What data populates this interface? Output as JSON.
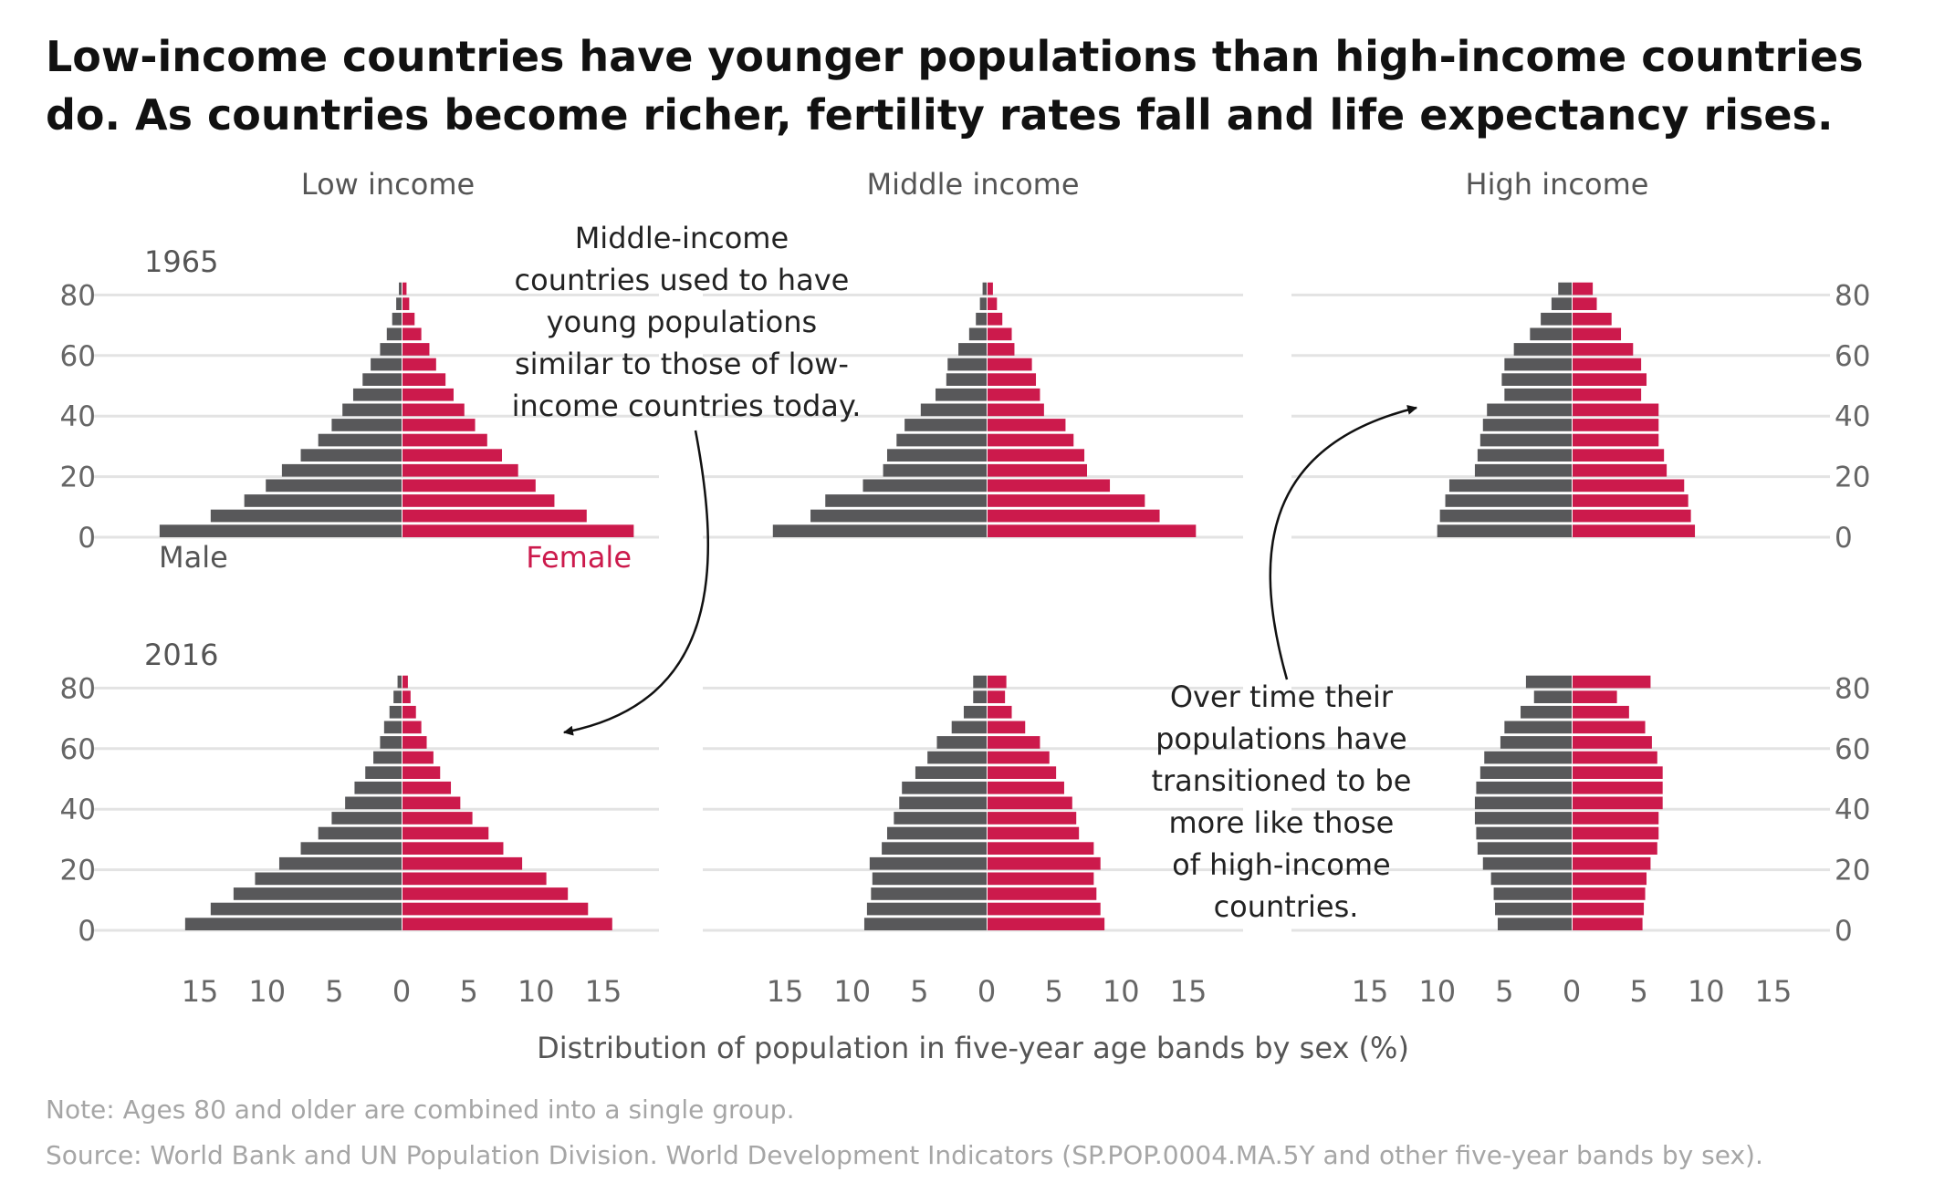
{
  "title": "Low-income countries have younger populations than high-income countries do. As countries become richer, fertility rates fall and life expectancy rises.",
  "note": "Note: Ages 80 and older are combined into a single group.",
  "source": "Source: World Bank and UN Population Division. World Development Indicators (SP.POP.0004.MA.5Y and other five-year bands by sex).",
  "colors": {
    "male": "#58585a",
    "female": "#cc1a4c",
    "grid": "#e3e3e3",
    "axis_text": "#666666",
    "label": "#555555"
  },
  "chart_data": {
    "type": "bar",
    "subtype": "population-pyramid",
    "xlabel": "Distribution of population in five-year age bands by sex (%)",
    "x_ticks": [
      "15",
      "10",
      "5",
      "0",
      "5",
      "10",
      "15"
    ],
    "y_ticks": [
      "0",
      "20",
      "40",
      "60",
      "80"
    ],
    "xlim": [
      -15,
      15
    ],
    "ylim": [
      0,
      80
    ],
    "age_bands": [
      "0-4",
      "5-9",
      "10-14",
      "15-19",
      "20-24",
      "25-29",
      "30-34",
      "35-39",
      "40-44",
      "45-49",
      "50-54",
      "55-59",
      "60-64",
      "65-69",
      "70-74",
      "75-79",
      "80+"
    ],
    "columns": [
      "Low income",
      "Middle income",
      "High income"
    ],
    "rows": [
      "1965",
      "2016"
    ],
    "legend": {
      "male": "Male",
      "female": "Female"
    },
    "panels": [
      {
        "column": "Low income",
        "year": "1965",
        "male": [
          18.0,
          14.2,
          11.7,
          10.1,
          8.9,
          7.5,
          6.2,
          5.2,
          4.4,
          3.6,
          2.9,
          2.3,
          1.6,
          1.1,
          0.7,
          0.4,
          0.2
        ],
        "female": [
          17.2,
          13.7,
          11.3,
          9.9,
          8.6,
          7.4,
          6.3,
          5.4,
          4.6,
          3.8,
          3.2,
          2.5,
          2.0,
          1.4,
          0.9,
          0.5,
          0.3
        ]
      },
      {
        "column": "Middle income",
        "year": "1965",
        "male": [
          15.9,
          13.1,
          12.0,
          9.2,
          7.7,
          7.4,
          6.7,
          6.1,
          4.9,
          3.8,
          3.0,
          2.9,
          2.1,
          1.3,
          0.8,
          0.5,
          0.3
        ],
        "female": [
          15.5,
          12.8,
          11.7,
          9.1,
          7.4,
          7.2,
          6.4,
          5.8,
          4.2,
          3.9,
          3.6,
          3.3,
          2.0,
          1.8,
          1.1,
          0.7,
          0.4
        ]
      },
      {
        "column": "High income",
        "year": "1965",
        "male": [
          10.0,
          9.8,
          9.4,
          9.1,
          7.2,
          7.0,
          6.8,
          6.6,
          6.3,
          5.0,
          5.2,
          5.0,
          4.3,
          3.1,
          2.3,
          1.5,
          1.0
        ],
        "female": [
          9.1,
          8.8,
          8.6,
          8.3,
          7.0,
          6.8,
          6.4,
          6.4,
          6.4,
          5.1,
          5.5,
          5.1,
          4.5,
          3.6,
          2.9,
          1.8,
          1.5
        ]
      },
      {
        "column": "Low income",
        "year": "2016",
        "male": [
          16.1,
          14.2,
          12.5,
          10.9,
          9.1,
          7.5,
          6.2,
          5.2,
          4.2,
          3.5,
          2.7,
          2.1,
          1.6,
          1.3,
          0.9,
          0.6,
          0.3
        ],
        "female": [
          15.6,
          13.8,
          12.3,
          10.7,
          8.9,
          7.5,
          6.4,
          5.2,
          4.3,
          3.6,
          2.8,
          2.3,
          1.8,
          1.4,
          1.0,
          0.6,
          0.4
        ]
      },
      {
        "column": "Middle income",
        "year": "2016",
        "male": [
          9.1,
          8.9,
          8.6,
          8.5,
          8.7,
          7.8,
          7.4,
          6.9,
          6.5,
          6.3,
          5.3,
          4.4,
          3.7,
          2.6,
          1.7,
          1.0,
          1.0
        ],
        "female": [
          8.7,
          8.4,
          8.1,
          7.9,
          8.4,
          7.9,
          6.8,
          6.6,
          6.3,
          5.7,
          5.1,
          4.6,
          3.9,
          2.8,
          1.8,
          1.3,
          1.4
        ]
      },
      {
        "column": "High income",
        "year": "2016",
        "male": [
          5.5,
          5.7,
          5.8,
          6.0,
          6.6,
          7.0,
          7.1,
          7.2,
          7.2,
          7.1,
          6.8,
          6.5,
          5.3,
          5.0,
          3.8,
          2.8,
          3.4
        ],
        "female": [
          5.2,
          5.3,
          5.4,
          5.5,
          5.8,
          6.3,
          6.4,
          6.4,
          6.7,
          6.7,
          6.7,
          6.3,
          5.9,
          5.4,
          4.2,
          3.3,
          5.8
        ]
      }
    ],
    "annotations": [
      "Middle-income countries used to have young populations similar to those of low-income countries today.",
      "Over time their populations have transitioned to be more like those of high-income countries."
    ]
  }
}
